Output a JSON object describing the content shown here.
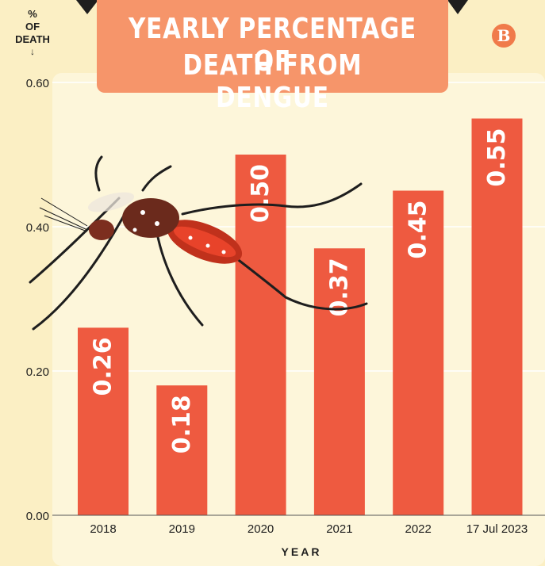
{
  "title": {
    "line1": "YEARLY PERCENTAGE OF",
    "line2": "DEATH FROM DENGUE"
  },
  "logo_letter": "B",
  "y_axis_label": {
    "line1": "%",
    "line2": "OF",
    "line3": "DEATH",
    "arrow": "↓"
  },
  "x_axis_label": "YEAR",
  "colors": {
    "background": "#fbefc4",
    "bar": "#ee5a40",
    "title_box": "#f6956a",
    "accent": "#f07a4a"
  },
  "chart_data": {
    "type": "bar",
    "title": "YEARLY PERCENTAGE OF DEATH FROM DENGUE",
    "xlabel": "YEAR",
    "ylabel": "% OF DEATH",
    "categories": [
      "2018",
      "2019",
      "2020",
      "2021",
      "2022",
      "17 Jul 2023"
    ],
    "values": [
      0.26,
      0.18,
      0.5,
      0.37,
      0.45,
      0.55
    ],
    "value_labels": [
      "0.26",
      "0.18",
      "0.50",
      "0.37",
      "0.45",
      "0.55"
    ],
    "yticks": [
      0.0,
      0.2,
      0.4,
      0.6
    ],
    "ytick_labels": [
      "0.00",
      "0.20",
      "0.40",
      "0.60"
    ],
    "ylim": [
      0,
      0.6
    ],
    "grid": true,
    "legend": "none"
  }
}
